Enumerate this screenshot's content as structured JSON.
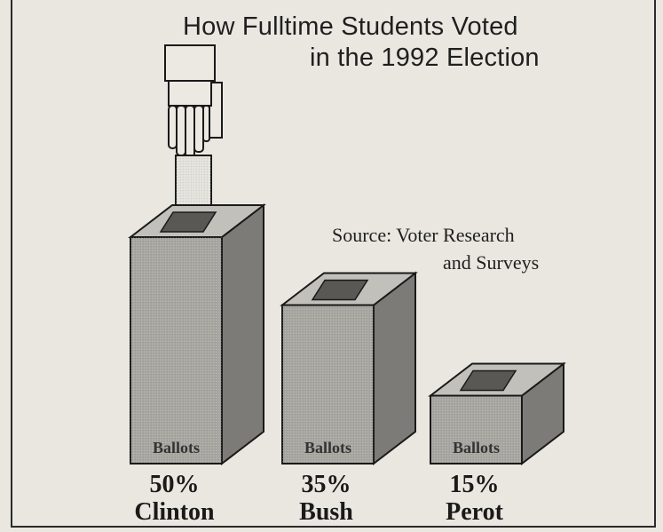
{
  "chart_data": {
    "type": "bar",
    "title": "How Fulltime Students Voted in the 1992 Election",
    "title_lines": [
      "How Fulltime Students Voted",
      "in the 1992 Election"
    ],
    "source_lines": [
      "Source: Voter Research",
      "and Surveys"
    ],
    "categories": [
      "Clinton",
      "Bush",
      "Perot"
    ],
    "values": [
      50,
      35,
      15
    ],
    "value_labels": [
      "50%",
      "35%",
      "15%"
    ],
    "box_label": "Ballots",
    "unit": "%",
    "style": "pictograph ballot boxes",
    "colors": {
      "box_front": "#a9a7a2",
      "box_side": "#7d7b77",
      "box_top": "#c2c0bb",
      "slot": "#5a5854",
      "paper": "#e4e2dc",
      "ink": "#1a1a1a"
    }
  }
}
